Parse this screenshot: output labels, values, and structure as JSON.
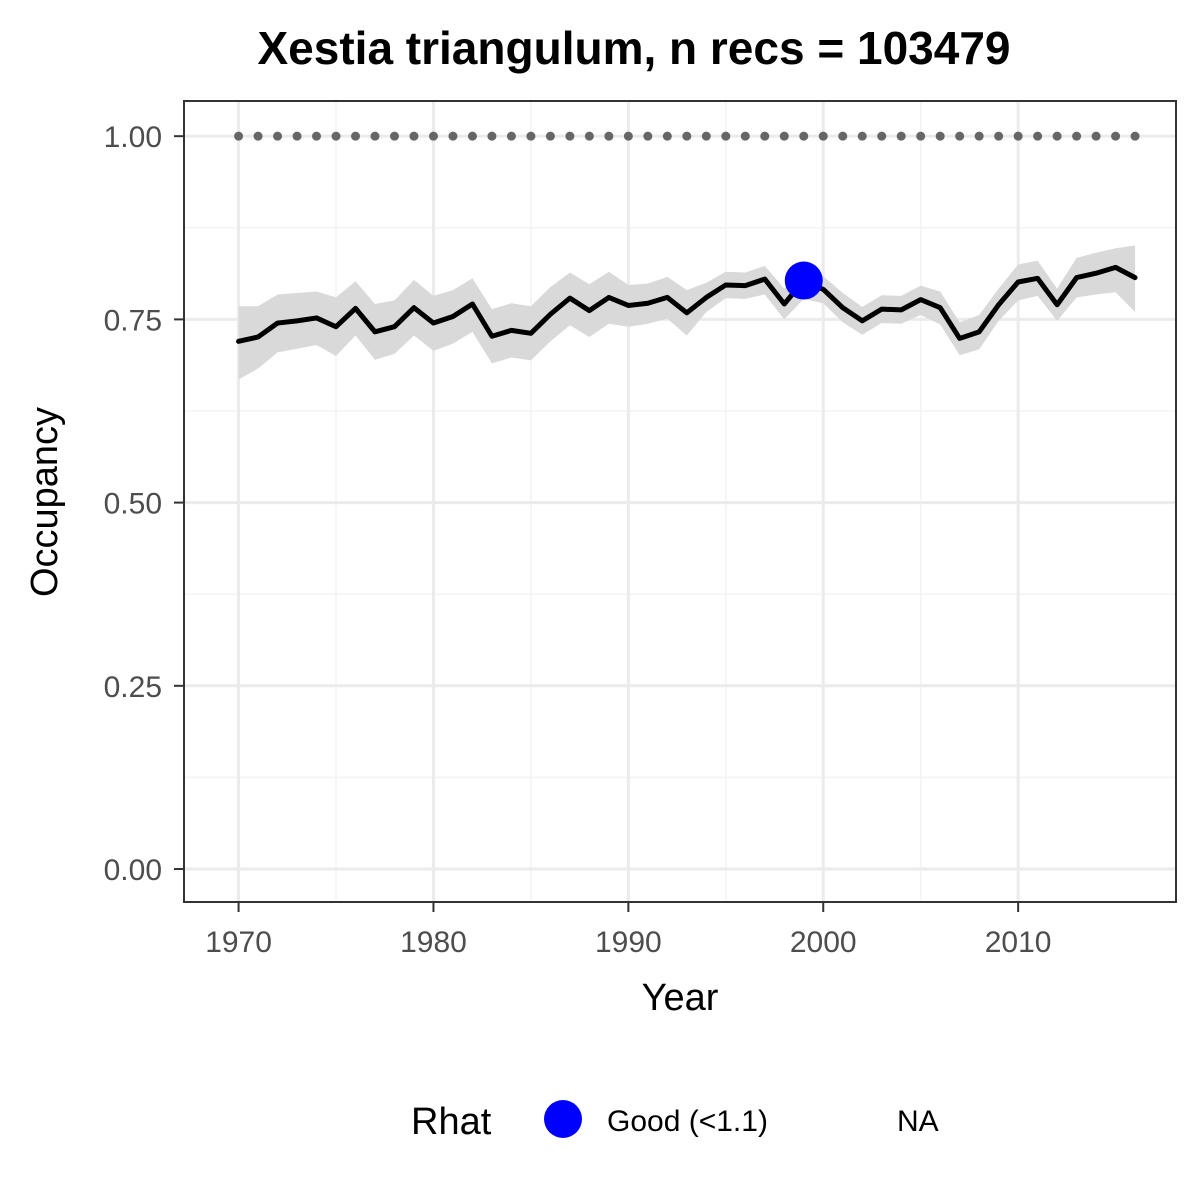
{
  "chart_data": {
    "type": "line",
    "title": "Xestia triangulum, n recs = 103479",
    "xlabel": "Year",
    "ylabel": "Occupancy",
    "xlim": [
      1967.2,
      2018.1
    ],
    "ylim": [
      -0.045,
      1.048
    ],
    "x_ticks": [
      1970,
      1980,
      1990,
      2000,
      2010
    ],
    "x_tick_labels": [
      "1970",
      "1980",
      "1990",
      "2000",
      "2010"
    ],
    "y_ticks": [
      0,
      0.25,
      0.5,
      0.75,
      1.0
    ],
    "y_tick_labels": [
      "0.00",
      "0.25",
      "0.50",
      "0.75",
      "1.00"
    ],
    "grid": true,
    "colors": {
      "line": "#000000",
      "ribbon": "#d9d9d9",
      "reference": "#666666",
      "good_point": "#0000ff",
      "grid_major": "#ebebeb",
      "grid_minor": "#f3f3f3",
      "panel_border": "#333333"
    },
    "x": [
      1970,
      1971,
      1972,
      1973,
      1974,
      1975,
      1976,
      1977,
      1978,
      1979,
      1980,
      1981,
      1982,
      1983,
      1984,
      1985,
      1986,
      1987,
      1988,
      1989,
      1990,
      1991,
      1992,
      1993,
      1994,
      1995,
      1996,
      1997,
      1998,
      1999,
      2000,
      2001,
      2002,
      2003,
      2004,
      2005,
      2006,
      2007,
      2008,
      2009,
      2010,
      2011,
      2012,
      2013,
      2014,
      2015,
      2016
    ],
    "series": [
      {
        "values": [
          0.72,
          0.726,
          0.745,
          0.748,
          0.752,
          0.74,
          0.765,
          0.733,
          0.74,
          0.766,
          0.745,
          0.754,
          0.771,
          0.727,
          0.735,
          0.731,
          0.757,
          0.779,
          0.762,
          0.78,
          0.769,
          0.772,
          0.78,
          0.759,
          0.78,
          0.797,
          0.796,
          0.805,
          0.771,
          0.803,
          0.791,
          0.766,
          0.748,
          0.764,
          0.763,
          0.777,
          0.766,
          0.724,
          0.733,
          0.77,
          0.801,
          0.806,
          0.77,
          0.807,
          0.813,
          0.821,
          0.807
        ],
        "lower": [
          0.668,
          0.683,
          0.705,
          0.71,
          0.715,
          0.7,
          0.728,
          0.695,
          0.703,
          0.728,
          0.707,
          0.717,
          0.733,
          0.69,
          0.698,
          0.694,
          0.72,
          0.742,
          0.726,
          0.744,
          0.74,
          0.744,
          0.751,
          0.728,
          0.76,
          0.779,
          0.778,
          0.784,
          0.75,
          0.778,
          0.772,
          0.746,
          0.729,
          0.745,
          0.744,
          0.756,
          0.743,
          0.701,
          0.709,
          0.748,
          0.776,
          0.782,
          0.748,
          0.78,
          0.784,
          0.787,
          0.76
        ],
        "upper": [
          0.768,
          0.768,
          0.784,
          0.786,
          0.788,
          0.78,
          0.802,
          0.771,
          0.776,
          0.804,
          0.782,
          0.79,
          0.806,
          0.764,
          0.772,
          0.768,
          0.794,
          0.814,
          0.798,
          0.815,
          0.797,
          0.799,
          0.808,
          0.79,
          0.8,
          0.815,
          0.814,
          0.823,
          0.792,
          0.826,
          0.809,
          0.786,
          0.767,
          0.783,
          0.782,
          0.796,
          0.788,
          0.746,
          0.756,
          0.792,
          0.825,
          0.83,
          0.792,
          0.834,
          0.841,
          0.847,
          0.851
        ]
      }
    ],
    "reference": {
      "y": 1.0,
      "x": [
        1970,
        1971,
        1972,
        1973,
        1974,
        1975,
        1976,
        1977,
        1978,
        1979,
        1980,
        1981,
        1982,
        1983,
        1984,
        1985,
        1986,
        1987,
        1988,
        1989,
        1990,
        1991,
        1992,
        1993,
        1994,
        1995,
        1996,
        1997,
        1998,
        1999,
        2000,
        2001,
        2002,
        2003,
        2004,
        2005,
        2006,
        2007,
        2008,
        2009,
        2010,
        2011,
        2012,
        2013,
        2014,
        2015,
        2016
      ]
    },
    "rhat_points": [
      {
        "x": 1999,
        "y": 0.803,
        "category": "Good (<1.1)"
      }
    ],
    "legend": {
      "title": "Rhat",
      "position": "bottom",
      "entries": [
        {
          "label": "Good (<1.1)",
          "color": "#0000ff",
          "marker": true
        },
        {
          "label": "NA",
          "marker": false
        }
      ]
    }
  }
}
